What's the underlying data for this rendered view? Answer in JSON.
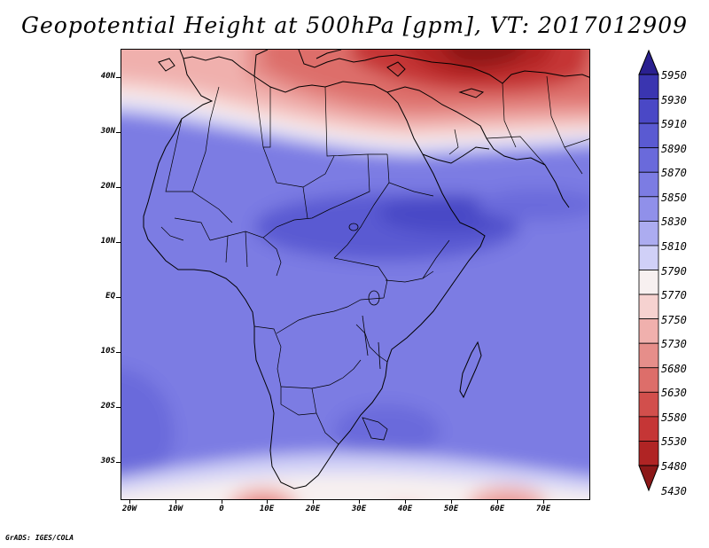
{
  "title": "Geopotential Height at 500hPa [gpm], VT: 2017012909",
  "footer": "GrADS: IGES/COLA",
  "map": {
    "lat_labels": [
      "40N",
      "30N",
      "20N",
      "10N",
      "EQ",
      "10S",
      "20S",
      "30S"
    ],
    "lon_labels": [
      "20W",
      "10W",
      "0",
      "10E",
      "20E",
      "30E",
      "40E",
      "50E",
      "60E",
      "70E"
    ]
  },
  "colorbar": {
    "labels": [
      "5950",
      "5930",
      "5910",
      "5890",
      "5870",
      "5850",
      "5830",
      "5810",
      "5790",
      "5770",
      "5750",
      "5730",
      "5680",
      "5630",
      "5580",
      "5530",
      "5480",
      "5430"
    ],
    "colors": [
      "#2a2090",
      "#3a35b0",
      "#4a48c6",
      "#5a5ad2",
      "#6a6adb",
      "#7c7ce3",
      "#9090ea",
      "#acacf0",
      "#d0d0f7",
      "#f7f0f0",
      "#f6d2d0",
      "#f0b0ad",
      "#e68e8a",
      "#dd6e6a",
      "#d24f4c",
      "#c53636",
      "#b02424",
      "#8c1818"
    ]
  }
}
